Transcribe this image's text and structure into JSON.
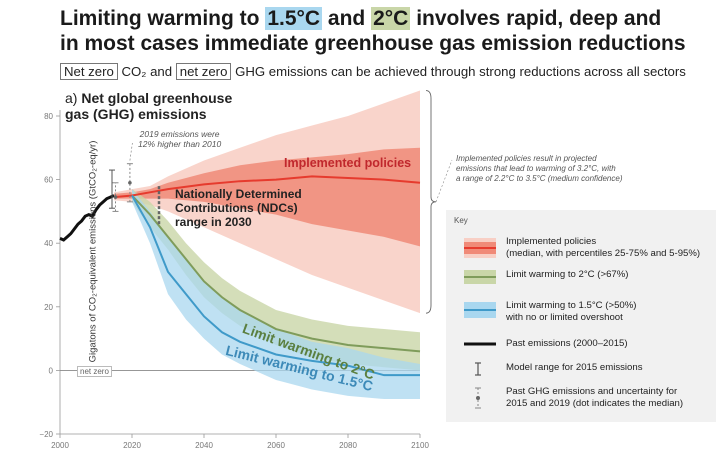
{
  "title": {
    "part1": "Limiting warming to ",
    "hl1": "1.5°C",
    "part2": " and ",
    "hl2": "2°C",
    "part3": " involves rapid, deep and",
    "line2": "in most cases immediate greenhouse gas emission reductions"
  },
  "subtitle": {
    "box1": "Net zero",
    "mid1": " CO₂ and ",
    "box2": "net zero",
    "mid2": " GHG emissions can be achieved through strong reductions across all sectors"
  },
  "panel": {
    "prefix": "a)",
    "title_line1": "Net global greenhouse",
    "title_line2": "gas (GHG) emissions"
  },
  "annotations": {
    "note_2019_line1": "2019 emissions were",
    "note_2019_line2": "12% higher than 2010",
    "implemented_label": "Implemented policies",
    "ndc_line1": "Nationally Determined",
    "ndc_line2": "Contributions (NDCs)",
    "ndc_line3": "range in 2030",
    "limit2_label": "Limit warming to 2°C",
    "limit15_label": "Limit warming to 1.5°C",
    "netzero_tag": "net zero",
    "impl_note_line1": "Implemented policies result in projected",
    "impl_note_line2": "emissions that lead to warming of 3.2°C, with",
    "impl_note_line3": "a range of 2.2°C to 3.5°C (medium confidence)"
  },
  "legend": {
    "key": "Key",
    "items": [
      {
        "line1": "Implemented policies",
        "line2": "(median, with percentiles 25-75% and 5-95%)"
      },
      {
        "line1": "Limit warming to 2°C (>67%)",
        "line2": ""
      },
      {
        "line1": "Limit warming to 1.5°C (>50%)",
        "line2": "with no or limited overshoot"
      },
      {
        "line1": "Past emissions (2000–2015)",
        "line2": ""
      },
      {
        "line1": "Model range for 2015 emissions",
        "line2": ""
      },
      {
        "line1": "Past GHG emissions and uncertainty for",
        "line2": "2015 and 2019 (dot indicates the median)"
      }
    ]
  },
  "colors": {
    "implemented": "#e63b2e",
    "implemented_inner": "#f08a78",
    "implemented_outer": "#f8cfc5",
    "limit2": "#7f9c5b",
    "limit2_band": "#c9d6a8",
    "limit15": "#3f9ac9",
    "limit15_band": "#a9d7ef",
    "past": "#111111"
  },
  "chart_data": {
    "type": "line",
    "ylabel": "Gigatons of CO₂-equivalent emissions (GtCO₂-eq/yr)",
    "xlim": [
      2000,
      2100
    ],
    "ylim": [
      -20,
      80
    ],
    "xticks": [
      2000,
      2020,
      2040,
      2060,
      2080,
      2100
    ],
    "yticks": [
      -20,
      0,
      20,
      40,
      60,
      80
    ],
    "series": [
      {
        "name": "Past emissions (2000–2015)",
        "x": [
          2000,
          2001,
          2002,
          2003,
          2004,
          2005,
          2006,
          2007,
          2008,
          2009,
          2010,
          2011,
          2012,
          2013,
          2014,
          2015
        ],
        "y": [
          41.5,
          41,
          42,
          43,
          44.5,
          46,
          47,
          48.5,
          49,
          48.5,
          50.5,
          52,
          53,
          54,
          54.5,
          55
        ]
      },
      {
        "name": "Implemented policies",
        "x": [
          2015,
          2020,
          2025,
          2030,
          2040,
          2050,
          2060,
          2070,
          2080,
          2090,
          2100
        ],
        "median": [
          54.5,
          55,
          56,
          57,
          58.5,
          59.5,
          60,
          61,
          60.5,
          60,
          59
        ],
        "p25": [
          54,
          54,
          54,
          54,
          53,
          51,
          49,
          46,
          44,
          42,
          39
        ],
        "p75": [
          55.5,
          56,
          57,
          59,
          62,
          64.5,
          66,
          67,
          68,
          69.5,
          70
        ],
        "p5": [
          53.5,
          53,
          52,
          50,
          45,
          40,
          35,
          30,
          26,
          22,
          18
        ],
        "p95": [
          56,
          57,
          58,
          61,
          66,
          70,
          74,
          77,
          80,
          84,
          88
        ]
      },
      {
        "name": "Limit warming to 2°C (>67%)",
        "x": [
          2020,
          2025,
          2030,
          2035,
          2040,
          2045,
          2050,
          2060,
          2070,
          2080,
          2090,
          2100
        ],
        "median": [
          55,
          49,
          42,
          35,
          28,
          23,
          19,
          13,
          10,
          8,
          7,
          6
        ],
        "low": [
          53,
          45,
          38,
          30,
          23,
          18,
          14,
          8,
          4,
          2,
          1,
          0
        ],
        "high": [
          57,
          53,
          47,
          40,
          34,
          29,
          25,
          19,
          16,
          14,
          13,
          12
        ]
      },
      {
        "name": "Limit warming to 1.5°C (>50%)",
        "x": [
          2020,
          2025,
          2030,
          2035,
          2040,
          2045,
          2050,
          2060,
          2070,
          2080,
          2090,
          2100
        ],
        "median": [
          55,
          45,
          31,
          24,
          17,
          12,
          9,
          5,
          3,
          1.5,
          -1.5,
          -1.5
        ],
        "low": [
          53,
          40,
          24,
          16,
          10,
          5,
          2,
          -3,
          -6,
          -8,
          -9,
          -9
        ],
        "high": [
          57,
          50,
          42,
          35,
          28,
          23,
          19,
          13,
          9,
          7,
          4,
          2
        ]
      }
    ],
    "ndc_range_2030": [
      46,
      58
    ],
    "model_range_2015": [
      51,
      63
    ],
    "past_uncertainty": [
      {
        "x": 2015,
        "median": 54.5,
        "low": 50,
        "high": 59
      },
      {
        "x": 2019,
        "median": 59,
        "low": 53,
        "high": 65
      }
    ]
  }
}
